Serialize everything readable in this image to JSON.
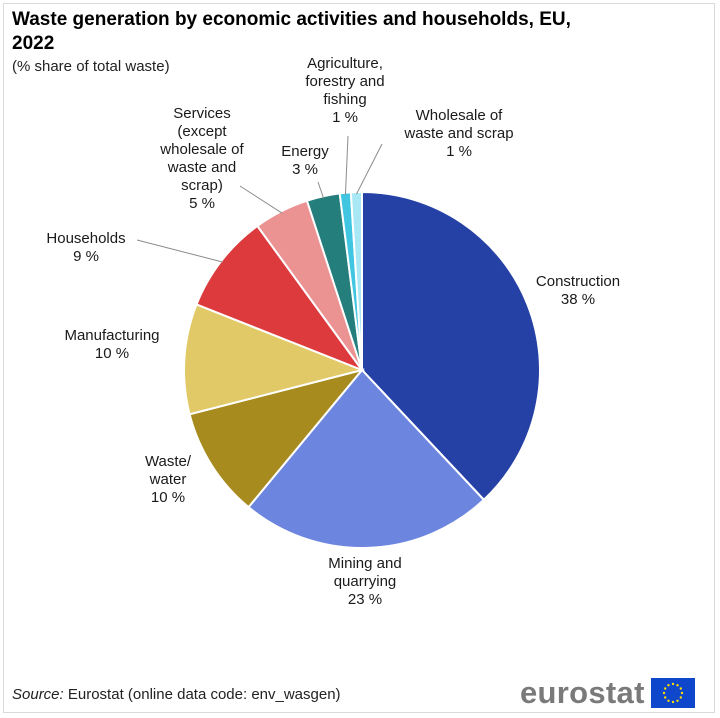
{
  "title": "Waste generation by economic activities and households, EU, 2022",
  "subtitle": "(% share of total waste)",
  "source": {
    "label": "Source:",
    "text": "Eurostat (online data code: env_wasgen)"
  },
  "logo": {
    "text": "eurostat",
    "flag_icon": "eu-flag-icon",
    "flag_color": "#0E47CB",
    "star_color": "#FFDD00"
  },
  "chart_data": {
    "type": "pie",
    "title": "Waste generation by economic activities and households, EU, 2022",
    "subtitle": "(% share of total waste)",
    "unit": "%",
    "start": "12 o'clock, clockwise",
    "slices": [
      {
        "label": "Construction",
        "value": 38,
        "value_label": "38 %",
        "color": "#2641A6"
      },
      {
        "label": "Mining and quarrying",
        "value": 23,
        "value_label": "23 %",
        "color": "#6C86DF"
      },
      {
        "label": "Waste/ water",
        "value": 10,
        "value_label": "10 %",
        "color": "#A78B1E"
      },
      {
        "label": "Manufacturing",
        "value": 10,
        "value_label": "10 %",
        "color": "#E2C967"
      },
      {
        "label": "Households",
        "value": 9,
        "value_label": "9 %",
        "color": "#DC3A3D"
      },
      {
        "label": "Services (except wholesale of waste and scrap)",
        "value": 5,
        "value_label": "5 %",
        "color": "#EB9393"
      },
      {
        "label": "Energy",
        "value": 3,
        "value_label": "3 %",
        "color": "#247E7B"
      },
      {
        "label": "Agriculture, forestry and fishing",
        "value": 1,
        "value_label": "1 %",
        "color": "#41C6E2"
      },
      {
        "label": "Wholesale of waste and scrap",
        "value": 1,
        "value_label": "1 %",
        "color": "#A8E8F4"
      }
    ]
  }
}
